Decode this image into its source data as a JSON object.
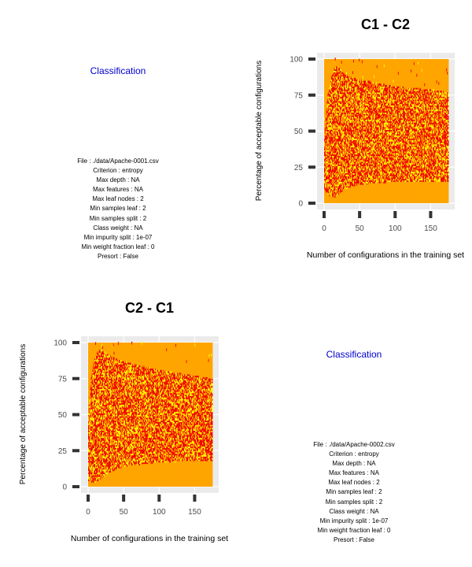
{
  "panels": [
    {
      "kind": "info",
      "title": "Classification",
      "lines": [
        "File : ./data/Apache-0001.csv",
        "Criterion : entropy",
        "Max depth : NA",
        "Max features : NA",
        "Max leaf nodes : 2",
        "Min samples leaf : 2",
        "Min samples split : 2",
        "Class weight : NA",
        "Min impurity split : 1e-07",
        "Min weight fraction leaf : 0",
        "Presort : False"
      ]
    },
    {
      "kind": "info",
      "title": "Classification",
      "lines": [
        "File : ./data/Apache-0002.csv",
        "Criterion : entropy",
        "Max depth : NA",
        "Max features : NA",
        "Max leaf nodes : 2",
        "Min samples leaf : 2",
        "Min samples split : 2",
        "Class weight : NA",
        "Min impurity split : 1e-07",
        "Min weight fraction leaf : 0",
        "Presort : False"
      ]
    }
  ],
  "chart_data": [
    {
      "type": "heatmap",
      "title": "C1 - C2",
      "xlabel": "Number of configurations in the training set",
      "ylabel": "Percentage of acceptable configurations",
      "xlim": [
        0,
        175
      ],
      "ylim": [
        0,
        100
      ],
      "xticks": [
        0,
        50,
        100,
        150
      ],
      "yticks": [
        0,
        25,
        50,
        75,
        100
      ],
      "grid": true,
      "legend": "none",
      "colors": {
        "background": "#FFA500",
        "high": "#FFFF00",
        "mid": "#EE0000",
        "panel": "#EBEBEB"
      },
      "band": {
        "x": [
          1,
          5,
          10,
          15,
          20,
          30,
          50,
          100,
          150,
          175
        ],
        "lower": [
          10,
          6,
          5,
          4,
          6,
          10,
          13,
          15,
          15,
          15
        ],
        "upper": [
          45,
          70,
          85,
          93,
          94,
          88,
          85,
          80,
          78,
          76
        ]
      }
    },
    {
      "type": "heatmap",
      "title": "C2 - C1",
      "xlabel": "Number of configurations in the training set",
      "ylabel": "Percentage of acceptable configurations",
      "xlim": [
        0,
        175
      ],
      "ylim": [
        0,
        100
      ],
      "xticks": [
        0,
        50,
        100,
        150
      ],
      "yticks": [
        0,
        25,
        50,
        75,
        100
      ],
      "grid": true,
      "legend": "none",
      "colors": {
        "background": "#FFA500",
        "high": "#FFFF00",
        "mid": "#EE0000",
        "panel": "#EBEBEB"
      },
      "band": {
        "x": [
          1,
          5,
          10,
          15,
          20,
          30,
          50,
          100,
          150,
          175
        ],
        "lower": [
          4,
          3,
          3,
          4,
          6,
          10,
          14,
          17,
          18,
          18
        ],
        "upper": [
          50,
          75,
          88,
          94,
          94,
          90,
          86,
          80,
          76,
          74
        ]
      }
    }
  ]
}
